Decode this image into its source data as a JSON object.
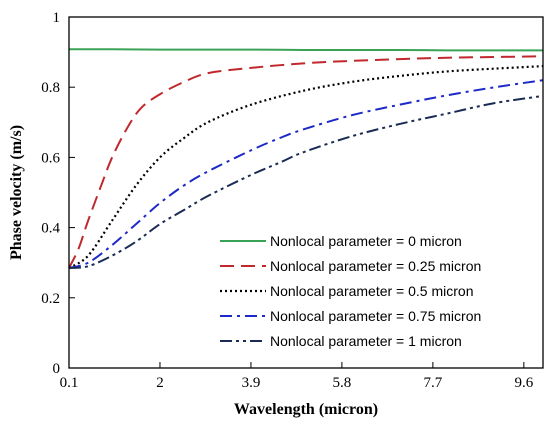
{
  "chart_data": {
    "type": "line",
    "title": "",
    "xlabel": "Wavelength (micron)",
    "ylabel": "Phase velocity (m/s)",
    "xlim": [
      0.1,
      10
    ],
    "ylim": [
      0,
      1
    ],
    "xticks": [
      0.1,
      2,
      3.9,
      5.8,
      7.7,
      9.6
    ],
    "xtick_labels": [
      "0.1",
      "2",
      "3.9",
      "5.8",
      "7.7",
      "9.6"
    ],
    "yticks": [
      0,
      0.2,
      0.4,
      0.6,
      0.8,
      1
    ],
    "ytick_labels": [
      "0",
      "0.2",
      "0.4",
      "0.6",
      "0.8",
      "1"
    ],
    "grid": false,
    "legend_position": "bottom-right",
    "series": [
      {
        "name": "Nonlocal parameter = 0 micron",
        "color": "#3aa357",
        "dash": "solid",
        "x": [
          0.1,
          1,
          2,
          3,
          4,
          5,
          6,
          7,
          8,
          9,
          10
        ],
        "y": [
          0.908,
          0.908,
          0.907,
          0.907,
          0.907,
          0.906,
          0.906,
          0.906,
          0.905,
          0.905,
          0.905
        ]
      },
      {
        "name": "Nonlocal parameter = 0.25 micron",
        "color": "#c0282d",
        "dash": "dash",
        "x": [
          0.1,
          0.3,
          0.5,
          0.8,
          1.0,
          1.3,
          1.6,
          2.0,
          2.5,
          3.0,
          3.9,
          5.0,
          6.0,
          7.0,
          8.0,
          9.0,
          10.0
        ],
        "y": [
          0.285,
          0.34,
          0.42,
          0.53,
          0.6,
          0.68,
          0.74,
          0.78,
          0.815,
          0.84,
          0.855,
          0.868,
          0.875,
          0.88,
          0.884,
          0.886,
          0.888
        ]
      },
      {
        "name": "Nonlocal parameter = 0.5 micron",
        "color": "#000000",
        "dash": "dot",
        "x": [
          0.1,
          0.5,
          1.0,
          1.5,
          2.0,
          2.5,
          3.0,
          3.9,
          5.0,
          6.0,
          7.0,
          8.0,
          9.0,
          10.0
        ],
        "y": [
          0.285,
          0.32,
          0.42,
          0.52,
          0.6,
          0.655,
          0.7,
          0.75,
          0.79,
          0.815,
          0.832,
          0.845,
          0.853,
          0.86
        ]
      },
      {
        "name": "Nonlocal parameter = 0.75 micron",
        "color": "#1e2ac8",
        "dash": "dashdot",
        "x": [
          0.1,
          0.5,
          1.0,
          1.5,
          2.0,
          2.5,
          3.0,
          3.9,
          4.5,
          5.0,
          6.0,
          7.0,
          8.0,
          9.0,
          10.0
        ],
        "y": [
          0.285,
          0.3,
          0.35,
          0.41,
          0.47,
          0.52,
          0.56,
          0.62,
          0.655,
          0.68,
          0.72,
          0.75,
          0.777,
          0.8,
          0.82
        ]
      },
      {
        "name": "Nonlocal parameter = 1 micron",
        "color": "#1a2b55",
        "dash": "dashdotdot",
        "x": [
          0.1,
          0.5,
          1.0,
          1.5,
          2.0,
          2.5,
          3.0,
          3.9,
          4.5,
          5.0,
          6.0,
          7.0,
          8.0,
          9.0,
          10.0
        ],
        "y": [
          0.285,
          0.29,
          0.32,
          0.36,
          0.41,
          0.45,
          0.49,
          0.55,
          0.585,
          0.615,
          0.66,
          0.695,
          0.725,
          0.755,
          0.775
        ]
      }
    ]
  }
}
